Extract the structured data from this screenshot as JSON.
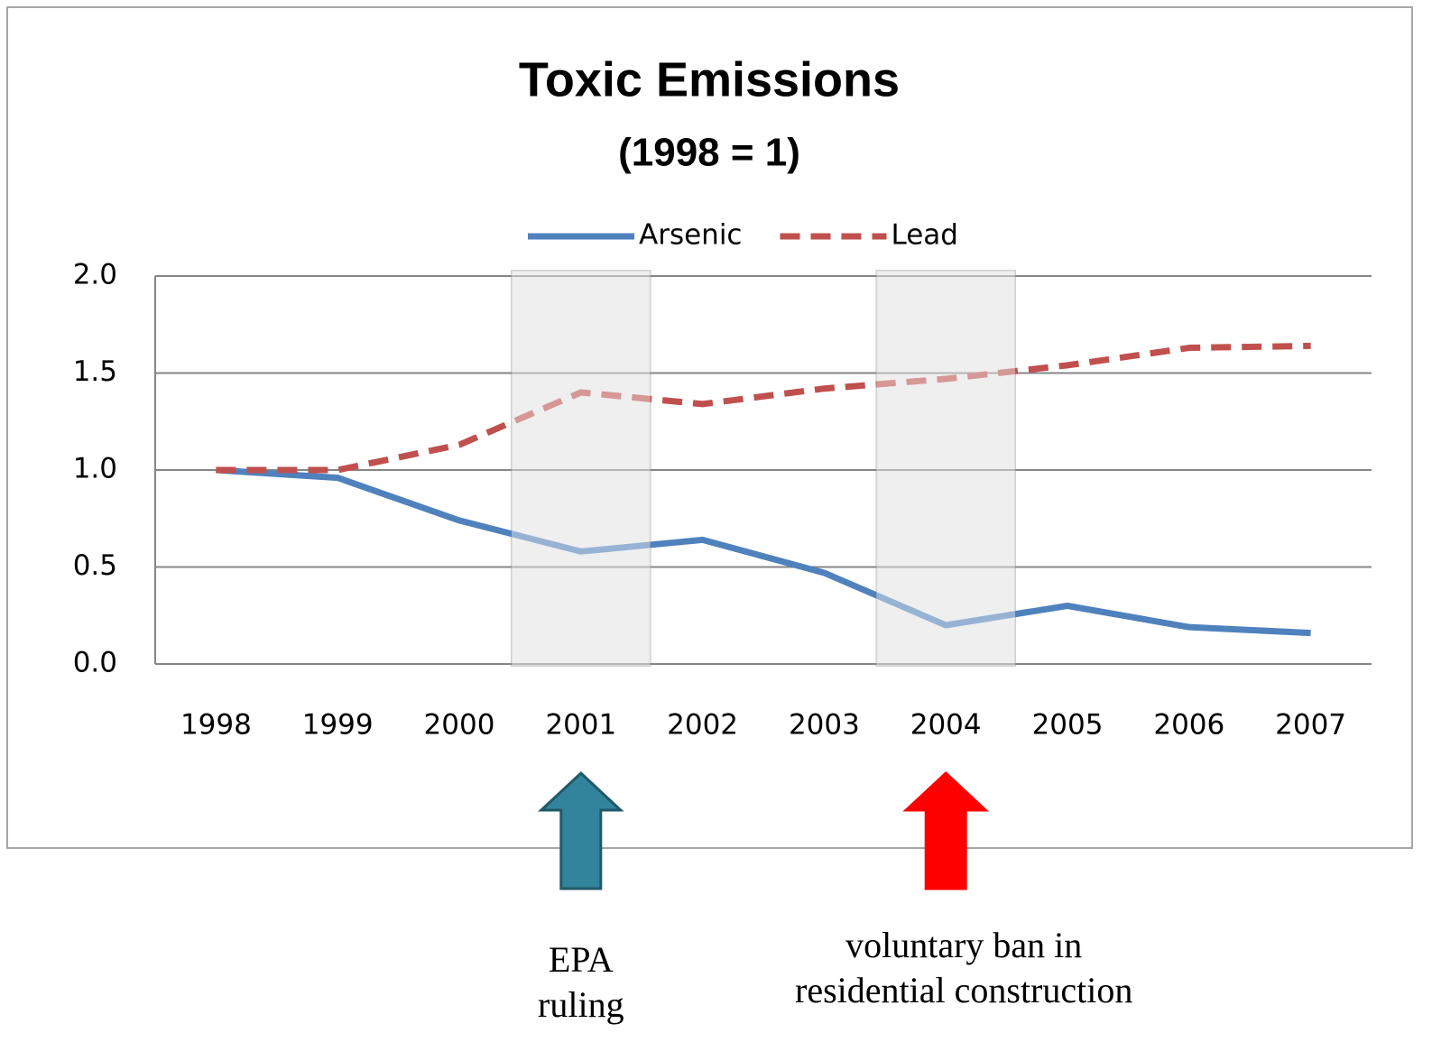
{
  "chart_data": {
    "type": "line",
    "title": "Toxic Emissions",
    "subtitle": "(1998 = 1)",
    "categories": [
      "1998",
      "1999",
      "2000",
      "2001",
      "2002",
      "2003",
      "2004",
      "2005",
      "2006",
      "2007"
    ],
    "series": [
      {
        "name": "Arsenic",
        "color": "#4f81bd",
        "dashed": false,
        "values": [
          1.0,
          0.96,
          0.74,
          0.58,
          0.64,
          0.47,
          0.2,
          0.3,
          0.19,
          0.16
        ]
      },
      {
        "name": "Lead",
        "color": "#c0504d",
        "dashed": true,
        "values": [
          1.0,
          1.0,
          1.13,
          1.4,
          1.34,
          1.42,
          1.47,
          1.54,
          1.63,
          1.64
        ]
      }
    ],
    "ylim": [
      0,
      2
    ],
    "yticks": [
      {
        "value": 0,
        "label": "0.0"
      },
      {
        "value": 0.5,
        "label": "0.5"
      },
      {
        "value": 1,
        "label": "1.0"
      },
      {
        "value": 1.5,
        "label": "1.5"
      },
      {
        "value": 2,
        "label": "2.0"
      }
    ],
    "grid": true,
    "legend": "top",
    "annotations": [
      {
        "x": "2001",
        "lines": [
          "EPA",
          "ruling"
        ],
        "color": "#31849b"
      },
      {
        "x": "2004",
        "lines": [
          "voluntary ban in",
          "residential construction"
        ],
        "color": "#ff0000"
      }
    ]
  }
}
